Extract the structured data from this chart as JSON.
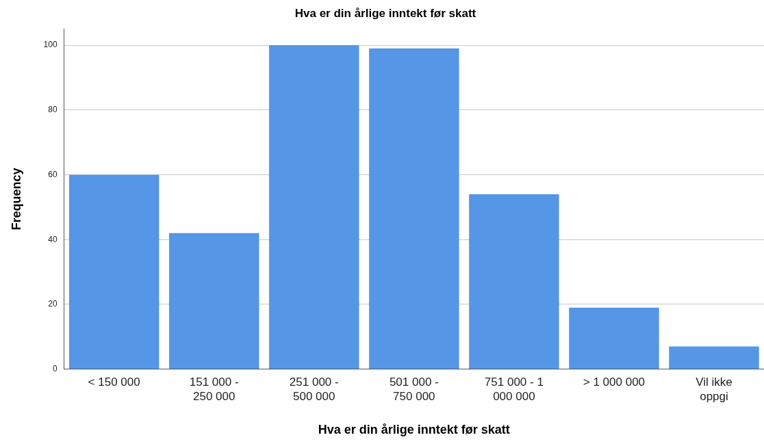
{
  "chart_data": {
    "type": "bar",
    "title": "Hva er din årlige inntekt før skatt",
    "xlabel": "Hva er din årlige inntekt før skatt",
    "ylabel": "Frequency",
    "categories": [
      "< 150 000",
      "151 000 - 250 000",
      "251 000 - 500 000",
      "501 000 - 750 000",
      "751 000 - 1 000 000",
      "> 1 000 000",
      "Vil ikke oppgi"
    ],
    "values": [
      60,
      42,
      100,
      99,
      54,
      19,
      7
    ],
    "color": "#5596e6",
    "ylim": [
      0,
      105
    ],
    "yticks": [
      0,
      20,
      40,
      60,
      80,
      100
    ],
    "grid": "y",
    "legend": false
  }
}
